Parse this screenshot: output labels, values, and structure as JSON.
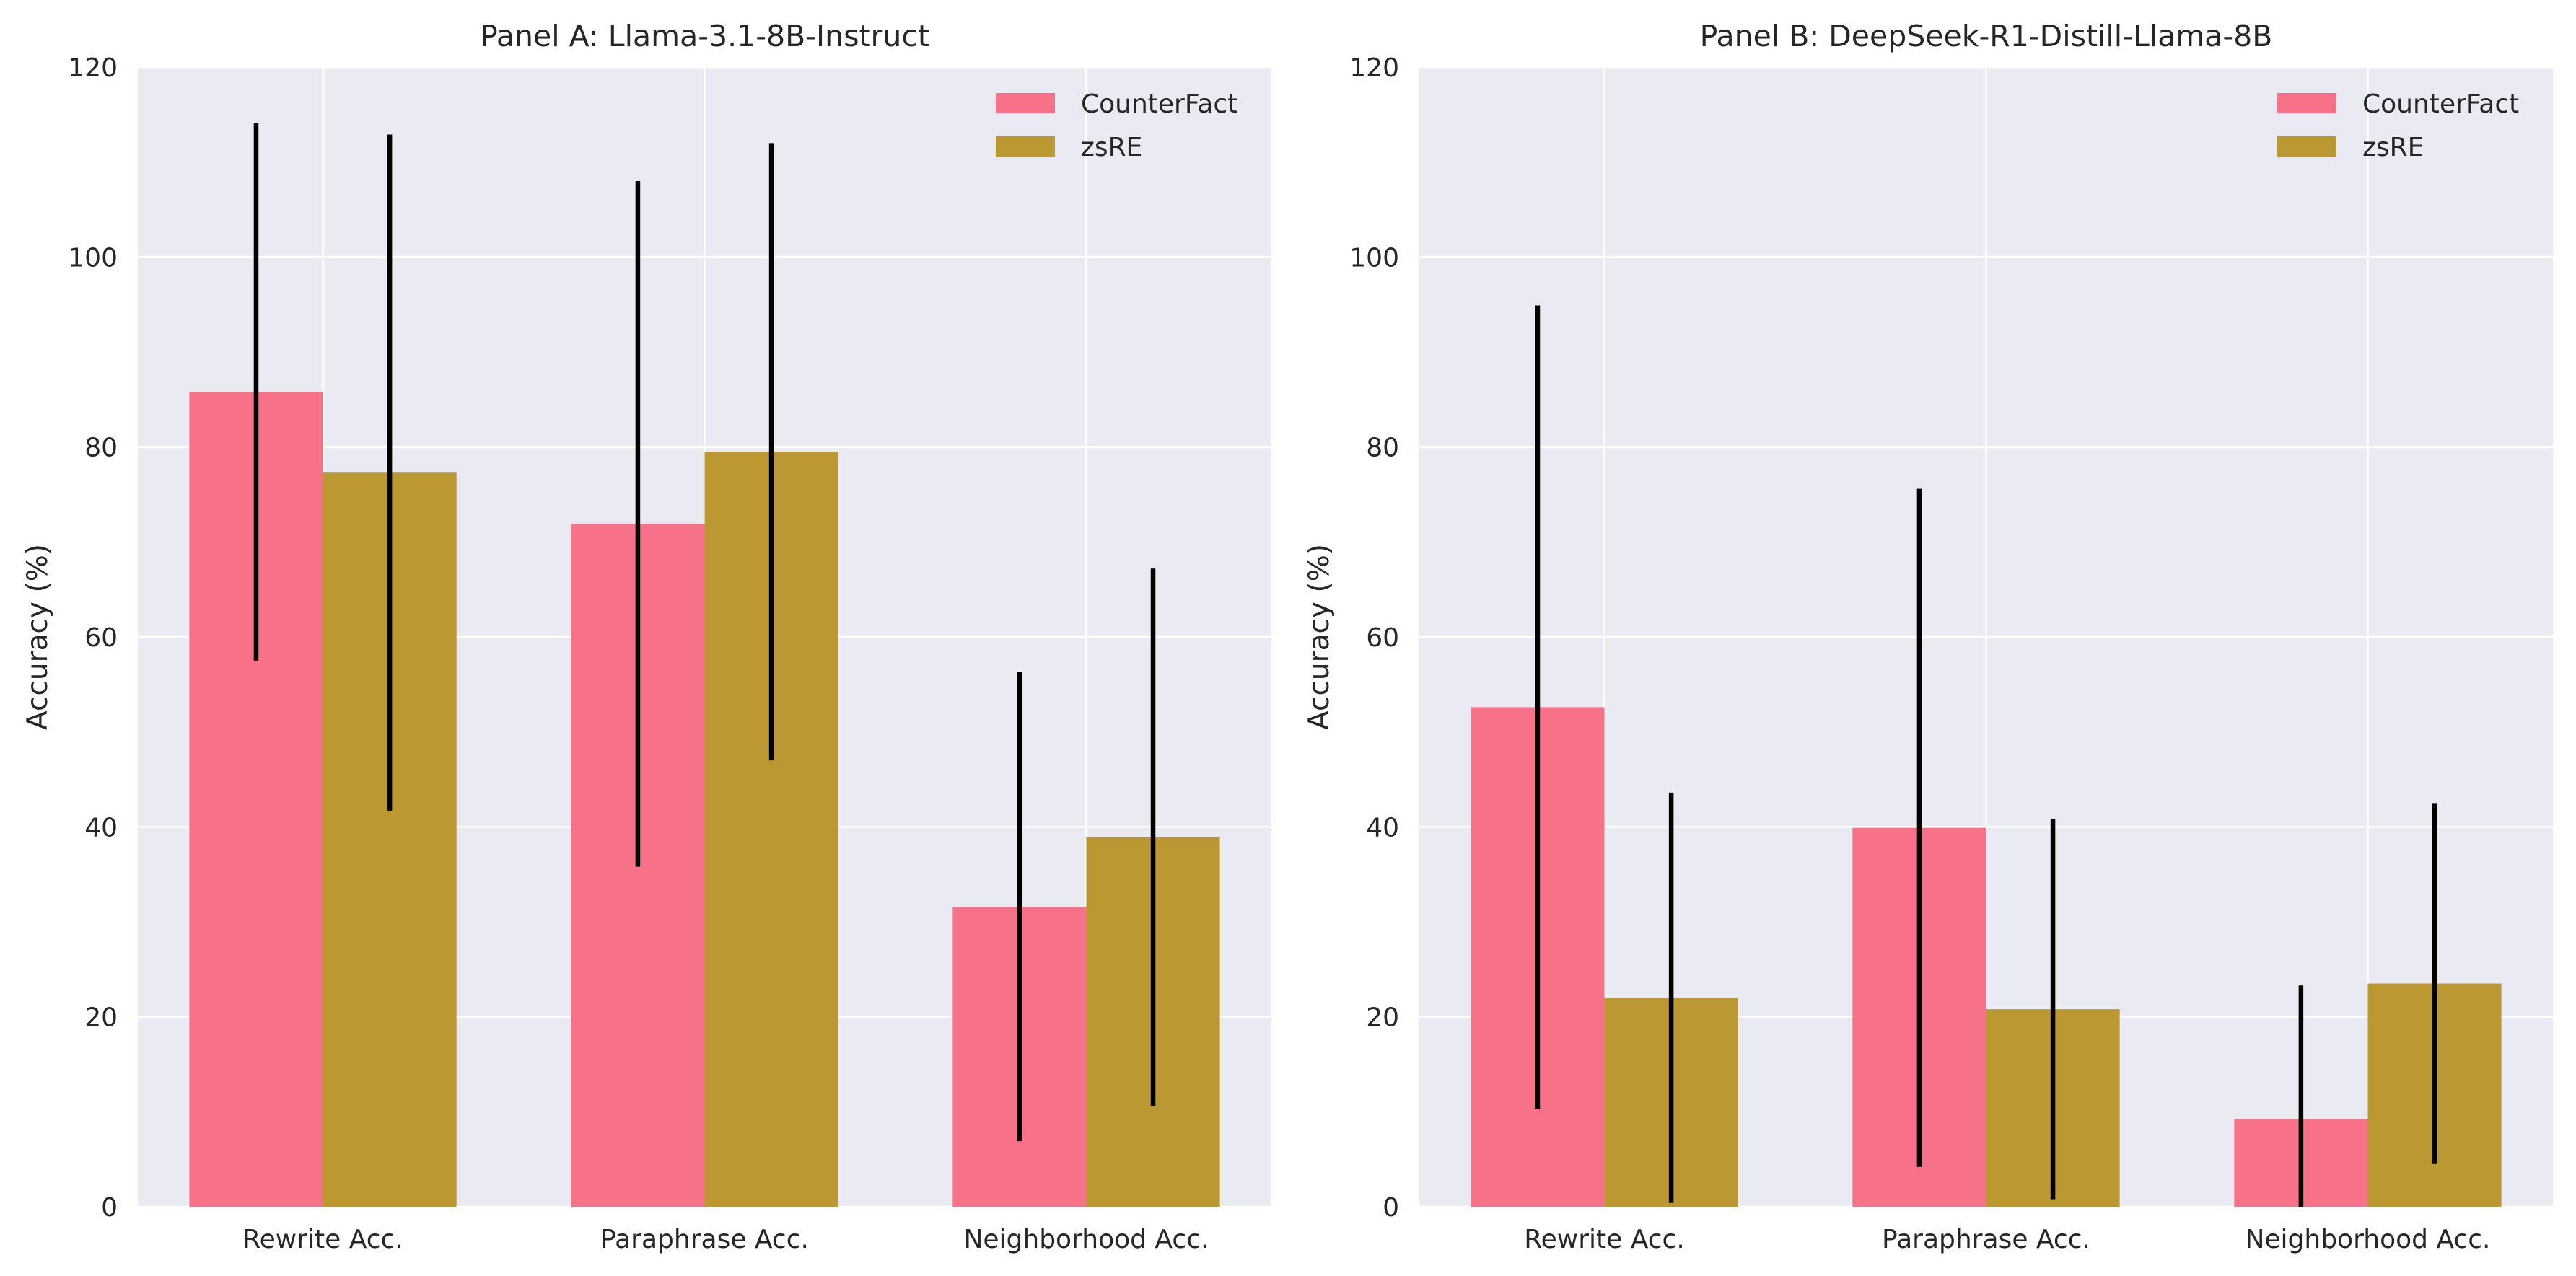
{
  "chart_data": [
    {
      "type": "bar",
      "title": "Panel A: Llama-3.1-8B-Instruct",
      "xlabel": "",
      "ylabel": "Accuracy (%)",
      "categories": [
        "Rewrite Acc.",
        "Paraphrase Acc.",
        "Neighborhood Acc."
      ],
      "series": [
        {
          "name": "CounterFact",
          "values": [
            85.8,
            71.9,
            31.6
          ],
          "error": [
            28.3,
            36.1,
            24.7
          ],
          "color": "#F77189"
        },
        {
          "name": "zsRE",
          "values": [
            77.3,
            79.5,
            38.9
          ],
          "error": [
            35.6,
            32.5,
            28.3
          ],
          "color": "#BB9832"
        }
      ],
      "ylim": [
        0,
        120
      ],
      "yticks": [
        0,
        20,
        40,
        60,
        80,
        100,
        120
      ],
      "grid": true,
      "legend": "top-right",
      "background": "#EAEAF2",
      "gridline_color": "#FFFFFF",
      "errorbar_color": "#000000"
    },
    {
      "type": "bar",
      "title": "Panel B: DeepSeek-R1-Distill-Llama-8B",
      "xlabel": "",
      "ylabel": "Accuracy (%)",
      "categories": [
        "Rewrite Acc.",
        "Paraphrase Acc.",
        "Neighborhood Acc."
      ],
      "series": [
        {
          "name": "CounterFact",
          "values": [
            52.6,
            39.9,
            9.2
          ],
          "error": [
            42.3,
            35.7,
            14.1
          ],
          "color": "#F77189"
        },
        {
          "name": "zsRE",
          "values": [
            22.0,
            20.8,
            23.5
          ],
          "error": [
            21.6,
            20.0,
            19.0
          ],
          "color": "#BB9832"
        }
      ],
      "ylim": [
        0,
        120
      ],
      "yticks": [
        0,
        20,
        40,
        60,
        80,
        100,
        120
      ],
      "grid": true,
      "legend": "top-right",
      "background": "#EAEAF2",
      "gridline_color": "#FFFFFF",
      "errorbar_color": "#000000"
    }
  ]
}
